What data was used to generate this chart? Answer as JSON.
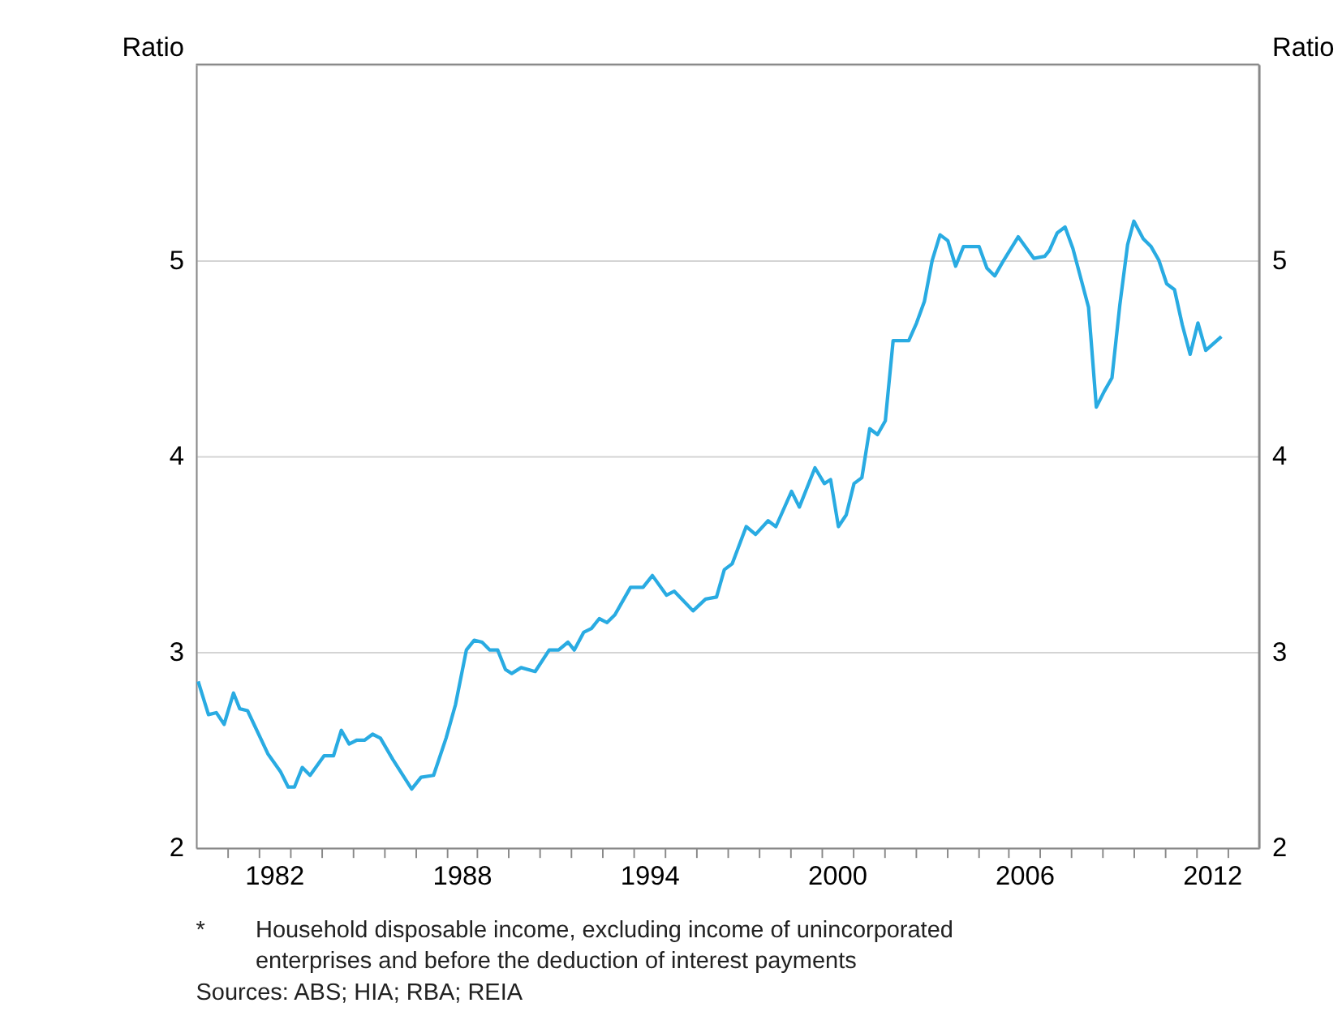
{
  "chart_data": {
    "type": "line",
    "ylabel": "Ratio",
    "y2label": "Ratio",
    "xlim": [
      1980,
      2014
    ],
    "ylim": [
      2,
      6
    ],
    "yticks": [
      2,
      3,
      4,
      5
    ],
    "y2lim": [
      2,
      6
    ],
    "y2ticks": [
      2,
      3,
      4,
      5
    ],
    "xticks": [
      {
        "value": 1981,
        "label": null
      },
      {
        "value": 1982,
        "label": null
      },
      {
        "value": 1982.5,
        "label": "1982"
      },
      {
        "value": 1983,
        "label": null
      },
      {
        "value": 1984,
        "label": null
      },
      {
        "value": 1985,
        "label": null
      },
      {
        "value": 1986,
        "label": null
      },
      {
        "value": 1987,
        "label": null
      },
      {
        "value": 1988,
        "label": null
      },
      {
        "value": 1988.5,
        "label": "1988"
      },
      {
        "value": 1989,
        "label": null
      },
      {
        "value": 1990,
        "label": null
      },
      {
        "value": 1991,
        "label": null
      },
      {
        "value": 1992,
        "label": null
      },
      {
        "value": 1993,
        "label": null
      },
      {
        "value": 1994,
        "label": null
      },
      {
        "value": 1994.5,
        "label": "1994"
      },
      {
        "value": 1995,
        "label": null
      },
      {
        "value": 1996,
        "label": null
      },
      {
        "value": 1997,
        "label": null
      },
      {
        "value": 1998,
        "label": null
      },
      {
        "value": 1999,
        "label": null
      },
      {
        "value": 2000,
        "label": null
      },
      {
        "value": 2000.5,
        "label": "2000"
      },
      {
        "value": 2001,
        "label": null
      },
      {
        "value": 2002,
        "label": null
      },
      {
        "value": 2003,
        "label": null
      },
      {
        "value": 2004,
        "label": null
      },
      {
        "value": 2005,
        "label": null
      },
      {
        "value": 2006,
        "label": null
      },
      {
        "value": 2006.5,
        "label": "2006"
      },
      {
        "value": 2007,
        "label": null
      },
      {
        "value": 2008,
        "label": null
      },
      {
        "value": 2009,
        "label": null
      },
      {
        "value": 2010,
        "label": null
      },
      {
        "value": 2011,
        "label": null
      },
      {
        "value": 2012,
        "label": null
      },
      {
        "value": 2012.5,
        "label": "2012"
      },
      {
        "value": 2013,
        "label": null
      }
    ],
    "grid": "y",
    "marker": "none",
    "line_style": "solid",
    "series": [
      {
        "color": "#29abe2",
        "x": [
          1980.07,
          1980.4,
          1980.65,
          1980.9,
          1981.2,
          1981.4,
          1981.65,
          1982.3,
          1982.7,
          1982.95,
          1983.15,
          1983.4,
          1983.65,
          1984.1,
          1984.4,
          1984.65,
          1984.9,
          1985.15,
          1985.4,
          1985.65,
          1985.9,
          1986.3,
          1986.9,
          1987.2,
          1987.6,
          1988.0,
          1988.3,
          1988.65,
          1988.9,
          1989.15,
          1989.4,
          1989.65,
          1989.9,
          1990.1,
          1990.4,
          1990.85,
          1991.3,
          1991.6,
          1991.9,
          1992.1,
          1992.4,
          1992.65,
          1992.9,
          1993.15,
          1993.4,
          1993.9,
          1994.3,
          1994.6,
          1995.05,
          1995.3,
          1995.9,
          1996.3,
          1996.65,
          1996.9,
          1997.15,
          1997.6,
          1997.9,
          1998.3,
          1998.55,
          1999.05,
          1999.3,
          1999.8,
          2000.1,
          2000.3,
          2000.55,
          2000.8,
          2001.05,
          2001.3,
          2001.55,
          2001.8,
          2002.05,
          2002.3,
          2002.8,
          2003.05,
          2003.3,
          2003.55,
          2003.8,
          2004.05,
          2004.3,
          2004.55,
          2005.05,
          2005.3,
          2005.55,
          2005.8,
          2006.3,
          2006.8,
          2007.15,
          2007.3,
          2007.55,
          2007.8,
          2008.05,
          2008.55,
          2008.8,
          2009.05,
          2009.3,
          2009.55,
          2009.8,
          2010.0,
          2010.3,
          2010.55,
          2010.8,
          2011.05,
          2011.3,
          2011.55,
          2011.8,
          2012.05,
          2012.3,
          2012.8
        ],
        "values": [
          2.85,
          2.68,
          2.69,
          2.63,
          2.79,
          2.71,
          2.7,
          2.48,
          2.39,
          2.31,
          2.31,
          2.41,
          2.37,
          2.47,
          2.47,
          2.6,
          2.53,
          2.55,
          2.55,
          2.58,
          2.56,
          2.45,
          2.3,
          2.36,
          2.37,
          2.56,
          2.73,
          3.01,
          3.06,
          3.05,
          3.01,
          3.01,
          2.91,
          2.89,
          2.92,
          2.9,
          3.01,
          3.01,
          3.05,
          3.01,
          3.1,
          3.12,
          3.17,
          3.15,
          3.19,
          3.33,
          3.33,
          3.39,
          3.29,
          3.31,
          3.21,
          3.27,
          3.28,
          3.42,
          3.45,
          3.64,
          3.6,
          3.67,
          3.64,
          3.82,
          3.74,
          3.94,
          3.86,
          3.88,
          3.64,
          3.7,
          3.86,
          3.89,
          4.14,
          4.11,
          4.18,
          4.59,
          4.59,
          4.68,
          4.79,
          5.0,
          5.13,
          5.1,
          4.97,
          5.07,
          5.07,
          4.96,
          4.92,
          4.99,
          5.12,
          5.01,
          5.02,
          5.05,
          5.14,
          5.17,
          5.06,
          4.76,
          4.25,
          4.33,
          4.4,
          4.77,
          5.08,
          5.2,
          5.11,
          5.07,
          5.0,
          4.88,
          4.85,
          4.67,
          4.52,
          4.68,
          4.54,
          4.61
        ]
      }
    ],
    "annotations": [
      "* Household disposable income, excluding income of unincorporated enterprises and before the deduction of interest payments",
      "Sources: ABS; HIA; RBA; REIA"
    ]
  }
}
